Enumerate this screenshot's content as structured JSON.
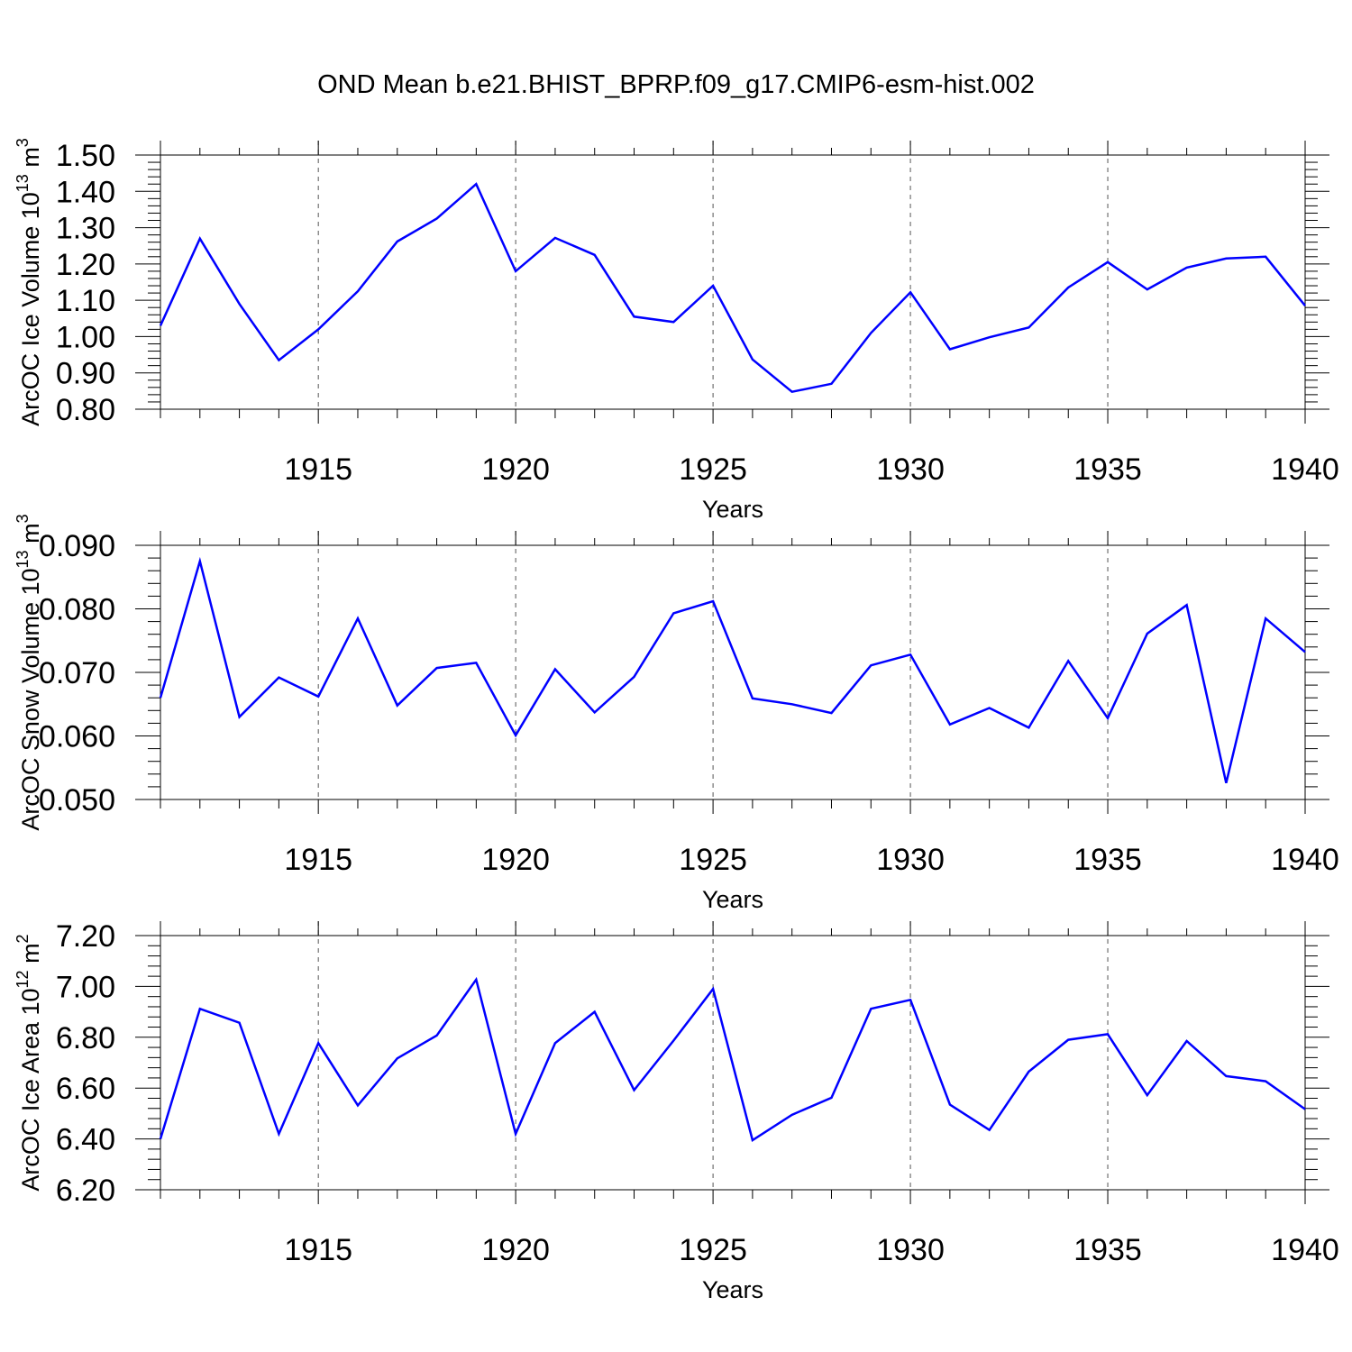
{
  "chart_data": [
    {
      "type": "line",
      "title": "OND Mean b.e21.BHIST_BPRP.f09_g17.CMIP6-esm-hist.002",
      "ylabel": {
        "base": "ArcOC Ice Volume 10",
        "exp": "13",
        "unit": " m",
        "unit_exp": "3"
      },
      "xlabel": "Years",
      "xlim": [
        1911,
        1940
      ],
      "ylim": [
        0.8,
        1.5
      ],
      "yticks": [
        "0.80",
        "0.90",
        "1.00",
        "1.10",
        "1.20",
        "1.30",
        "1.40",
        "1.50"
      ],
      "xticks": [
        "1915",
        "1920",
        "1925",
        "1930",
        "1935",
        "1940"
      ],
      "grid": "vertical dashed at major x ticks",
      "line_color": "#0000ff",
      "x": [
        1911,
        1912,
        1913,
        1914,
        1915,
        1916,
        1917,
        1918,
        1919,
        1920,
        1921,
        1922,
        1923,
        1924,
        1925,
        1926,
        1927,
        1928,
        1929,
        1930,
        1931,
        1932,
        1933,
        1934,
        1935,
        1936,
        1937,
        1938,
        1939,
        1940
      ],
      "values": [
        1.03,
        1.27,
        1.09,
        0.935,
        1.02,
        1.125,
        1.262,
        1.325,
        1.42,
        1.18,
        1.272,
        1.225,
        1.055,
        1.04,
        1.14,
        0.937,
        0.848,
        0.87,
        1.01,
        1.122,
        0.965,
        0.998,
        1.025,
        1.135,
        1.205,
        1.13,
        1.19,
        1.215,
        1.22,
        1.085
      ]
    },
    {
      "type": "line",
      "ylabel": {
        "base": "ArcOC Snow Volume 10",
        "exp": "13",
        "unit": " m",
        "unit_exp": "3"
      },
      "xlabel": "Years",
      "xlim": [
        1911,
        1940
      ],
      "ylim": [
        0.05,
        0.09
      ],
      "yticks": [
        "0.050",
        "0.060",
        "0.070",
        "0.080",
        "0.090"
      ],
      "xticks": [
        "1915",
        "1920",
        "1925",
        "1930",
        "1935",
        "1940"
      ],
      "grid": "vertical dashed at major x ticks",
      "line_color": "#0000ff",
      "x": [
        1911,
        1912,
        1913,
        1914,
        1915,
        1916,
        1917,
        1918,
        1919,
        1920,
        1921,
        1922,
        1923,
        1924,
        1925,
        1926,
        1927,
        1928,
        1929,
        1930,
        1931,
        1932,
        1933,
        1934,
        1935,
        1936,
        1937,
        1938,
        1939,
        1940
      ],
      "values": [
        0.066,
        0.0875,
        0.063,
        0.0692,
        0.0662,
        0.0785,
        0.0648,
        0.0707,
        0.0715,
        0.0601,
        0.0705,
        0.0637,
        0.0693,
        0.0793,
        0.0812,
        0.0659,
        0.065,
        0.0636,
        0.0711,
        0.0728,
        0.0618,
        0.0644,
        0.0613,
        0.0718,
        0.0628,
        0.0761,
        0.0806,
        0.0526,
        0.0785,
        0.0732
      ]
    },
    {
      "type": "line",
      "ylabel": {
        "base": "ArcOC Ice Area 10",
        "exp": "12",
        "unit": " m",
        "unit_exp": "2"
      },
      "xlabel": "Years",
      "xlim": [
        1911,
        1940
      ],
      "ylim": [
        6.2,
        7.2
      ],
      "yticks": [
        "6.20",
        "6.40",
        "6.60",
        "6.80",
        "7.00",
        "7.20"
      ],
      "xticks": [
        "1915",
        "1920",
        "1925",
        "1930",
        "1935",
        "1940"
      ],
      "grid": "vertical dashed at major x ticks",
      "line_color": "#0000ff",
      "x": [
        1911,
        1912,
        1913,
        1914,
        1915,
        1916,
        1917,
        1918,
        1919,
        1920,
        1921,
        1922,
        1923,
        1924,
        1925,
        1926,
        1927,
        1928,
        1929,
        1930,
        1931,
        1932,
        1933,
        1934,
        1935,
        1936,
        1937,
        1938,
        1939,
        1940
      ],
      "values": [
        6.4,
        6.912,
        6.857,
        6.42,
        6.777,
        6.532,
        6.717,
        6.807,
        7.027,
        6.42,
        6.777,
        6.9,
        6.592,
        6.787,
        6.99,
        6.395,
        6.495,
        6.562,
        6.912,
        6.947,
        6.535,
        6.435,
        6.665,
        6.79,
        6.812,
        6.572,
        6.785,
        6.647,
        6.627,
        6.517
      ]
    }
  ]
}
